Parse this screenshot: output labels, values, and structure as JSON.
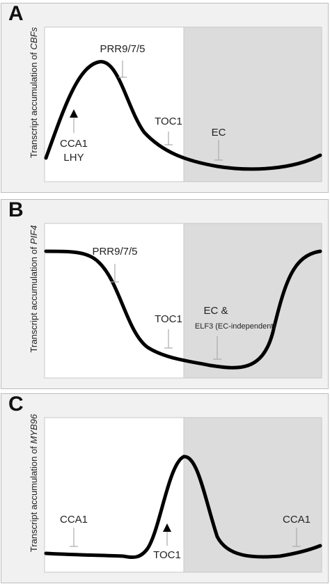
{
  "panels": [
    {
      "letter": "A",
      "y_label_prefix": "Transcript accumulation of ",
      "y_label_gene": "CBFs",
      "regulators": [
        {
          "text": "PRR9/7/5"
        },
        {
          "text": "TOC1"
        },
        {
          "text": "EC"
        },
        {
          "text": "CCA1"
        },
        {
          "text": "LHY"
        }
      ],
      "marks": {
        "activation": "triangle",
        "repression": "T-bar"
      }
    },
    {
      "letter": "B",
      "y_label_prefix": "Transcript accumulation of ",
      "y_label_gene": "PIF4",
      "regulators": [
        {
          "text": "PRR9/7/5"
        },
        {
          "text": "TOC1"
        },
        {
          "text": "EC &"
        },
        {
          "text": "ELF3 (EC-independent)"
        }
      ],
      "marks": {
        "activation": "triangle",
        "repression": "T-bar"
      }
    },
    {
      "letter": "C",
      "y_label_prefix": "Transcript accumulation of ",
      "y_label_gene": "MYB96",
      "regulators": [
        {
          "text": "CCA1"
        },
        {
          "text": "TOC1"
        },
        {
          "text": "CCA1"
        }
      ],
      "marks": {
        "activation": "triangle",
        "repression": "T-bar"
      }
    }
  ],
  "colors": {
    "day_background": "#ffffff",
    "night_background": "#dcdcdc",
    "panel_background": "#f1f1f1",
    "curve": "#000000",
    "repression_mark": "#aaaaaa"
  }
}
